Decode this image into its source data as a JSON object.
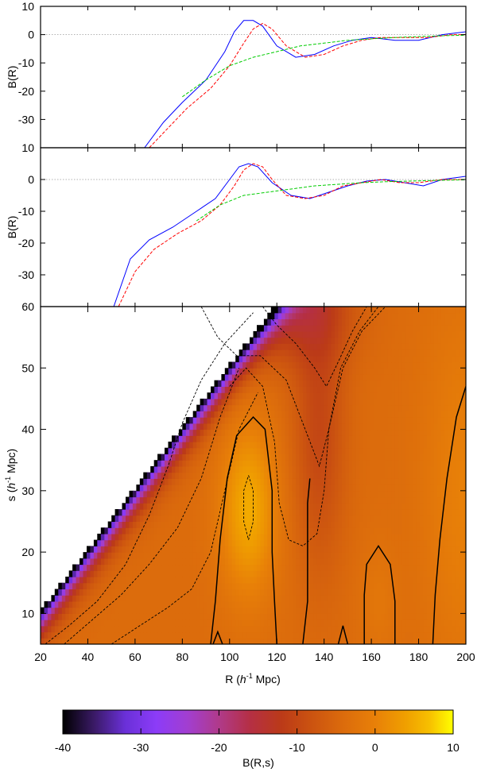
{
  "chart_data": [
    {
      "type": "line",
      "panel": "top",
      "xlim": [
        20,
        200
      ],
      "ylim": [
        -40,
        10
      ],
      "yticks": [
        10,
        0,
        -10,
        -20,
        -30
      ],
      "ytick_labels": [
        "10",
        "0",
        "-10",
        "-20",
        "-30"
      ],
      "ylabel": "B(R)",
      "reference_line_y": 0,
      "series": [
        {
          "color": "#0000ff",
          "style": "solid",
          "points": [
            [
              64,
              -40
            ],
            [
              72,
              -31
            ],
            [
              80,
              -24
            ],
            [
              90,
              -16
            ],
            [
              98,
              -6
            ],
            [
              102,
              1
            ],
            [
              106,
              5
            ],
            [
              110,
              5
            ],
            [
              114,
              3
            ],
            [
              120,
              -4
            ],
            [
              128,
              -8
            ],
            [
              136,
              -7
            ],
            [
              144,
              -4
            ],
            [
              152,
              -2
            ],
            [
              160,
              -1
            ],
            [
              170,
              -2
            ],
            [
              180,
              -2
            ],
            [
              190,
              0
            ],
            [
              200,
              1
            ]
          ]
        },
        {
          "color": "#ff0000",
          "style": "dashed",
          "points": [
            [
              66,
              -40
            ],
            [
              74,
              -33
            ],
            [
              82,
              -26
            ],
            [
              92,
              -19
            ],
            [
              100,
              -11
            ],
            [
              106,
              -3
            ],
            [
              110,
              2
            ],
            [
              114,
              4
            ],
            [
              118,
              2
            ],
            [
              124,
              -4
            ],
            [
              132,
              -8
            ],
            [
              140,
              -7
            ],
            [
              148,
              -4
            ],
            [
              156,
              -2
            ],
            [
              164,
              -1
            ],
            [
              174,
              -1
            ],
            [
              184,
              -1
            ],
            [
              194,
              0
            ],
            [
              200,
              0
            ]
          ]
        },
        {
          "color": "#00cc00",
          "style": "dashed",
          "points": [
            [
              80,
              -22
            ],
            [
              90,
              -16
            ],
            [
              100,
              -11
            ],
            [
              110,
              -8
            ],
            [
              120,
              -6
            ],
            [
              130,
              -4
            ],
            [
              140,
              -3
            ],
            [
              150,
              -2
            ],
            [
              160,
              -1.5
            ],
            [
              170,
              -1
            ],
            [
              180,
              -0.7
            ],
            [
              190,
              -0.4
            ],
            [
              200,
              -0.2
            ]
          ]
        }
      ]
    },
    {
      "type": "line",
      "panel": "middle",
      "xlim": [
        20,
        200
      ],
      "ylim": [
        -40,
        10
      ],
      "yticks": [
        10,
        0,
        -10,
        -20,
        -30
      ],
      "ytick_labels": [
        "10",
        "0",
        "-10",
        "-20",
        "-30"
      ],
      "ylabel": "B(R)",
      "reference_line_y": 0,
      "series": [
        {
          "color": "#0000ff",
          "style": "solid",
          "points": [
            [
              51,
              -40
            ],
            [
              58,
              -25
            ],
            [
              66,
              -19
            ],
            [
              76,
              -15
            ],
            [
              86,
              -10
            ],
            [
              94,
              -6
            ],
            [
              100,
              0
            ],
            [
              104,
              4
            ],
            [
              108,
              5
            ],
            [
              112,
              4
            ],
            [
              118,
              -1
            ],
            [
              126,
              -5
            ],
            [
              134,
              -6
            ],
            [
              142,
              -4
            ],
            [
              150,
              -2
            ],
            [
              158,
              -0.5
            ],
            [
              166,
              0
            ],
            [
              174,
              -1
            ],
            [
              182,
              -2
            ],
            [
              190,
              0
            ],
            [
              200,
              1
            ]
          ]
        },
        {
          "color": "#ff0000",
          "style": "dashed",
          "points": [
            [
              53,
              -40
            ],
            [
              60,
              -29
            ],
            [
              68,
              -22
            ],
            [
              78,
              -17
            ],
            [
              88,
              -13
            ],
            [
              96,
              -8
            ],
            [
              102,
              -2
            ],
            [
              106,
              3
            ],
            [
              110,
              5
            ],
            [
              114,
              4
            ],
            [
              118,
              0
            ],
            [
              124,
              -5
            ],
            [
              132,
              -6
            ],
            [
              140,
              -5
            ],
            [
              148,
              -2
            ],
            [
              156,
              -1
            ],
            [
              164,
              0
            ],
            [
              172,
              -1
            ],
            [
              180,
              -1
            ],
            [
              190,
              0
            ],
            [
              200,
              0
            ]
          ]
        },
        {
          "color": "#00cc00",
          "style": "dashed",
          "points": [
            [
              86,
              -13
            ],
            [
              96,
              -8
            ],
            [
              106,
              -5
            ],
            [
              116,
              -4
            ],
            [
              126,
              -3
            ],
            [
              136,
              -2
            ],
            [
              146,
              -1.5
            ],
            [
              156,
              -1
            ],
            [
              166,
              -0.7
            ],
            [
              176,
              -0.5
            ],
            [
              186,
              -0.3
            ],
            [
              200,
              -0.1
            ]
          ]
        }
      ]
    },
    {
      "type": "heatmap",
      "panel": "bottom",
      "xlabel": "R (h⁻¹ Mpc)",
      "xlabel_parts": [
        "R (",
        "h",
        "-1",
        " Mpc)"
      ],
      "ylabel_parts": [
        "s (",
        "h",
        "-1",
        " Mpc)"
      ],
      "xlim": [
        20,
        200
      ],
      "ylim": [
        5,
        60
      ],
      "xticks": [
        20,
        40,
        60,
        80,
        100,
        120,
        140,
        160,
        180,
        200
      ],
      "xtick_labels": [
        "20",
        "40",
        "60",
        "80",
        "100",
        "120",
        "140",
        "160",
        "180",
        "200"
      ],
      "yticks": [
        60,
        50,
        40,
        30,
        20,
        10
      ],
      "ytick_labels": [
        "60",
        "50",
        "40",
        "30",
        "20",
        "10"
      ],
      "valid_region": "s < R/2",
      "value_range": [
        -40,
        10
      ],
      "colorbar": {
        "label": "B(R,s)",
        "min": -40,
        "max": 10,
        "ticks": [
          -40,
          -30,
          -20,
          -10,
          0,
          10
        ],
        "tick_labels": [
          "-40",
          "-30",
          "-20",
          "-10",
          "0",
          "10"
        ]
      },
      "colormap": [
        {
          "v": -40,
          "color": "#000000"
        },
        {
          "v": -36,
          "color": "#3a1a66"
        },
        {
          "v": -32,
          "color": "#6a30d8"
        },
        {
          "v": -28,
          "color": "#8c3cf8"
        },
        {
          "v": -24,
          "color": "#a23ed0"
        },
        {
          "v": -20,
          "color": "#b03a8a"
        },
        {
          "v": -16,
          "color": "#b52f44"
        },
        {
          "v": -12,
          "color": "#bb3a18"
        },
        {
          "v": -8,
          "color": "#cc5410"
        },
        {
          "v": -4,
          "color": "#dc6c0c"
        },
        {
          "v": 0,
          "color": "#e88008"
        },
        {
          "v": 4,
          "color": "#f0a000"
        },
        {
          "v": 7,
          "color": "#f7c000"
        },
        {
          "v": 10,
          "color": "#ffff00"
        }
      ],
      "solid_contours": [
        {
          "points": [
            [
              92,
              5
            ],
            [
              94,
              12
            ],
            [
              96,
              22
            ],
            [
              99,
              32
            ],
            [
              103,
              39
            ],
            [
              110,
              42
            ],
            [
              115,
              40
            ],
            [
              118,
              30
            ],
            [
              118,
              20
            ],
            [
              119,
              12
            ],
            [
              120,
              5
            ]
          ]
        },
        {
          "points": [
            [
              131,
              5
            ],
            [
              133,
              12
            ],
            [
              133,
              20
            ],
            [
              133,
              28
            ],
            [
              134,
              32
            ]
          ]
        },
        {
          "points": [
            [
              146,
              5
            ],
            [
              148,
              8
            ],
            [
              150,
              5
            ]
          ]
        },
        {
          "points": [
            [
              157,
              5
            ],
            [
              157,
              13
            ],
            [
              158,
              18
            ],
            [
              163,
              21
            ],
            [
              168,
              18
            ],
            [
              170,
              12
            ],
            [
              170,
              5
            ]
          ]
        },
        {
          "points": [
            [
              93,
              5
            ],
            [
              95,
              7
            ],
            [
              97,
              5
            ]
          ]
        },
        {
          "points": [
            [
              186,
              5
            ],
            [
              187,
              13
            ],
            [
              189,
              22
            ],
            [
              192,
              32
            ],
            [
              196,
              42
            ],
            [
              200,
              47
            ]
          ]
        }
      ],
      "dashed_contours": [
        {
          "points": [
            [
              108,
              32.5
            ],
            [
              110,
              30
            ],
            [
              110,
              25
            ],
            [
              108,
              22
            ],
            [
              106,
              25
            ],
            [
              106,
              30
            ],
            [
              108,
              32.5
            ]
          ]
        },
        {
          "points": [
            [
              100,
              47
            ],
            [
              107,
              50
            ],
            [
              114,
              47
            ],
            [
              119,
              38
            ],
            [
              121,
              28
            ],
            [
              125,
              22
            ],
            [
              131,
              21
            ],
            [
              137,
              23
            ],
            [
              140,
              30
            ],
            [
              142,
              40
            ],
            [
              147,
              50
            ],
            [
              155,
              56
            ],
            [
              163,
              60
            ]
          ]
        },
        {
          "points": [
            [
              88,
              60
            ],
            [
              95,
              55
            ],
            [
              103,
              52
            ],
            [
              113,
              52
            ],
            [
              124,
              48
            ],
            [
              132,
              40
            ],
            [
              138,
              34
            ],
            [
              142,
              40
            ],
            [
              148,
              50
            ],
            [
              156,
              56
            ],
            [
              166,
              60
            ]
          ]
        },
        {
          "points": [
            [
              114,
              60
            ],
            [
              120,
              57
            ],
            [
              128,
              54
            ],
            [
              136,
              50
            ],
            [
              141,
              47
            ],
            [
              146,
              51
            ],
            [
              152,
              56
            ],
            [
              158,
              60
            ]
          ]
        },
        {
          "points": [
            [
              22,
              5
            ],
            [
              32,
              8
            ],
            [
              44,
              12
            ],
            [
              56,
              18
            ],
            [
              66,
              26
            ],
            [
              74,
              34
            ],
            [
              80,
              41
            ],
            [
              88,
              48
            ],
            [
              98,
              54
            ],
            [
              110,
              59
            ]
          ]
        },
        {
          "points": [
            [
              30,
              5
            ],
            [
              42,
              9
            ],
            [
              54,
              13
            ],
            [
              66,
              18
            ],
            [
              78,
              24
            ],
            [
              88,
              32
            ],
            [
              96,
              42
            ],
            [
              104,
              50
            ]
          ]
        },
        {
          "points": [
            [
              50,
              5
            ],
            [
              62,
              8
            ],
            [
              74,
              11
            ],
            [
              84,
              14
            ],
            [
              92,
              20
            ],
            [
              98,
              30
            ],
            [
              104,
              40
            ],
            [
              112,
              46
            ]
          ]
        }
      ]
    }
  ]
}
